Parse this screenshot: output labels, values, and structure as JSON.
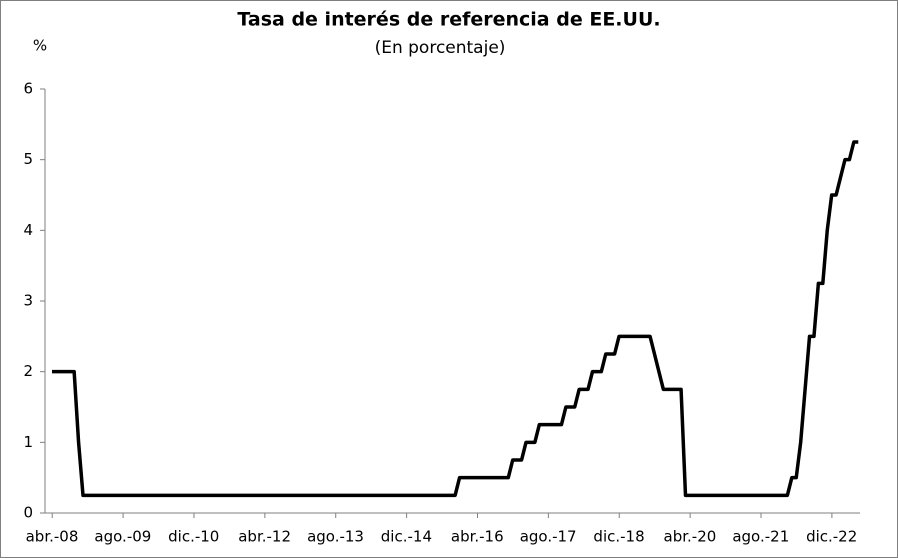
{
  "chart_data": {
    "type": "line",
    "title": "Tasa de interés de referencia de EE.UU.",
    "subtitle": "(En porcentaje)",
    "y_label": "%",
    "categories": [
      "abr.-08",
      null,
      null,
      null,
      null,
      null,
      null,
      null,
      null,
      null,
      null,
      null,
      null,
      null,
      null,
      null,
      "ago.-09",
      null,
      null,
      null,
      null,
      null,
      null,
      null,
      null,
      null,
      null,
      null,
      null,
      null,
      null,
      null,
      "dic.-10",
      null,
      null,
      null,
      null,
      null,
      null,
      null,
      null,
      null,
      null,
      null,
      null,
      null,
      null,
      null,
      "abr.-12",
      null,
      null,
      null,
      null,
      null,
      null,
      null,
      null,
      null,
      null,
      null,
      null,
      null,
      null,
      null,
      "ago.-13",
      null,
      null,
      null,
      null,
      null,
      null,
      null,
      null,
      null,
      null,
      null,
      null,
      null,
      null,
      null,
      "dic.-14",
      null,
      null,
      null,
      null,
      null,
      null,
      null,
      null,
      null,
      null,
      null,
      null,
      null,
      null,
      null,
      "abr.-16",
      null,
      null,
      null,
      null,
      null,
      null,
      null,
      null,
      null,
      null,
      null,
      null,
      null,
      null,
      null,
      "ago.-17",
      null,
      null,
      null,
      null,
      null,
      null,
      null,
      null,
      null,
      null,
      null,
      null,
      null,
      null,
      null,
      "dic.-18",
      null,
      null,
      null,
      null,
      null,
      null,
      null,
      null,
      null,
      null,
      null,
      null,
      null,
      null,
      null,
      "abr.-20",
      null,
      null,
      null,
      null,
      null,
      null,
      null,
      null,
      null,
      null,
      null,
      null,
      null,
      null,
      null,
      "ago.-21",
      null,
      null,
      null,
      null,
      null,
      null,
      null,
      null,
      null,
      null,
      null,
      null,
      null,
      null,
      null,
      "dic.-22",
      null,
      null,
      null,
      null,
      null,
      null
    ],
    "series": [
      {
        "color": "#000000",
        "values": [
          2,
          2,
          2,
          2,
          2,
          2,
          1,
          0.25,
          0.25,
          0.25,
          0.25,
          0.25,
          0.25,
          0.25,
          0.25,
          0.25,
          0.25,
          0.25,
          0.25,
          0.25,
          0.25,
          0.25,
          0.25,
          0.25,
          0.25,
          0.25,
          0.25,
          0.25,
          0.25,
          0.25,
          0.25,
          0.25,
          0.25,
          0.25,
          0.25,
          0.25,
          0.25,
          0.25,
          0.25,
          0.25,
          0.25,
          0.25,
          0.25,
          0.25,
          0.25,
          0.25,
          0.25,
          0.25,
          0.25,
          0.25,
          0.25,
          0.25,
          0.25,
          0.25,
          0.25,
          0.25,
          0.25,
          0.25,
          0.25,
          0.25,
          0.25,
          0.25,
          0.25,
          0.25,
          0.25,
          0.25,
          0.25,
          0.25,
          0.25,
          0.25,
          0.25,
          0.25,
          0.25,
          0.25,
          0.25,
          0.25,
          0.25,
          0.25,
          0.25,
          0.25,
          0.25,
          0.25,
          0.25,
          0.25,
          0.25,
          0.25,
          0.25,
          0.25,
          0.25,
          0.25,
          0.25,
          0.25,
          0.5,
          0.5,
          0.5,
          0.5,
          0.5,
          0.5,
          0.5,
          0.5,
          0.5,
          0.5,
          0.5,
          0.5,
          0.75,
          0.75,
          0.75,
          1,
          1,
          1,
          1.25,
          1.25,
          1.25,
          1.25,
          1.25,
          1.25,
          1.5,
          1.5,
          1.5,
          1.75,
          1.75,
          1.75,
          2,
          2,
          2,
          2.25,
          2.25,
          2.25,
          2.5,
          2.5,
          2.5,
          2.5,
          2.5,
          2.5,
          2.5,
          2.5,
          2.25,
          2,
          1.75,
          1.75,
          1.75,
          1.75,
          1.75,
          0.25,
          0.25,
          0.25,
          0.25,
          0.25,
          0.25,
          0.25,
          0.25,
          0.25,
          0.25,
          0.25,
          0.25,
          0.25,
          0.25,
          0.25,
          0.25,
          0.25,
          0.25,
          0.25,
          0.25,
          0.25,
          0.25,
          0.25,
          0.25,
          0.5,
          0.5,
          1,
          1.75,
          2.5,
          2.5,
          3.25,
          3.25,
          4,
          4.5,
          4.5,
          4.75,
          5,
          5,
          5.25,
          5.25
        ]
      }
    ],
    "ylim": [
      0,
      6
    ],
    "yticks": [
      0,
      1,
      2,
      3,
      4,
      5,
      6
    ],
    "grid": false
  }
}
